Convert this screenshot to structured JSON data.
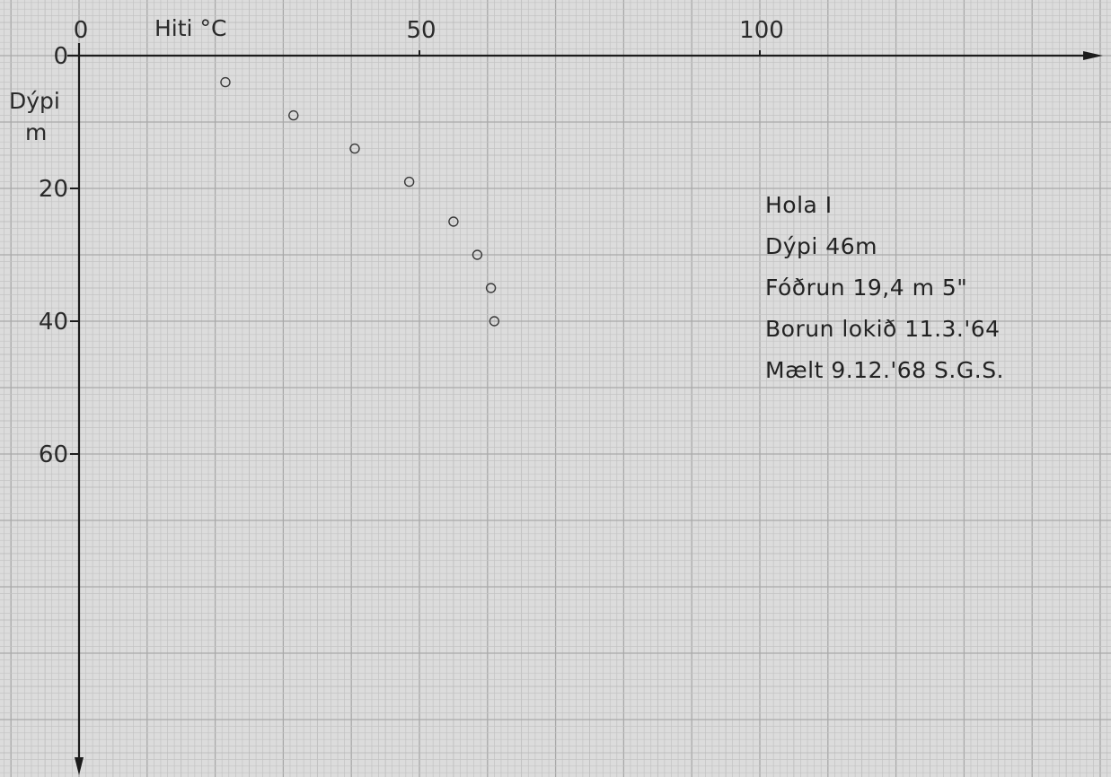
{
  "chart_data": {
    "type": "scatter",
    "title": "",
    "xlabel": "Hiti °C",
    "ylabel_line1": "Dýpi",
    "ylabel_line2": "m",
    "x_axis_position": "top",
    "y_axis_direction": "down",
    "xlim": [
      0,
      150
    ],
    "ylim": [
      0,
      105
    ],
    "x_ticks": [
      {
        "value": 0,
        "label": "0"
      },
      {
        "value": 50,
        "label": "50"
      },
      {
        "value": 100,
        "label": "100"
      }
    ],
    "y_ticks": [
      {
        "value": 0,
        "label": "0"
      },
      {
        "value": 20,
        "label": "20"
      },
      {
        "value": 40,
        "label": "40"
      },
      {
        "value": 60,
        "label": "60"
      }
    ],
    "grid": true,
    "points": [
      {
        "x": 21.5,
        "y": 4
      },
      {
        "x": 31.5,
        "y": 9
      },
      {
        "x": 40.5,
        "y": 14
      },
      {
        "x": 48.5,
        "y": 19
      },
      {
        "x": 55,
        "y": 25
      },
      {
        "x": 58.5,
        "y": 30
      },
      {
        "x": 60.5,
        "y": 35
      },
      {
        "x": 61,
        "y": 40
      }
    ],
    "annotations": [
      "Hola I",
      "Dýpi 46m",
      "Fóðrun 19,4 m 5\"",
      "Borun lokið 11.3.'64",
      "Mælt 9.12.'68 S.G.S."
    ],
    "colors": {
      "paper": "#dcdcdc",
      "grid_minor": "#c3c3c3",
      "grid_major": "#a9a9a9",
      "ink": "#1c1c1c"
    }
  }
}
